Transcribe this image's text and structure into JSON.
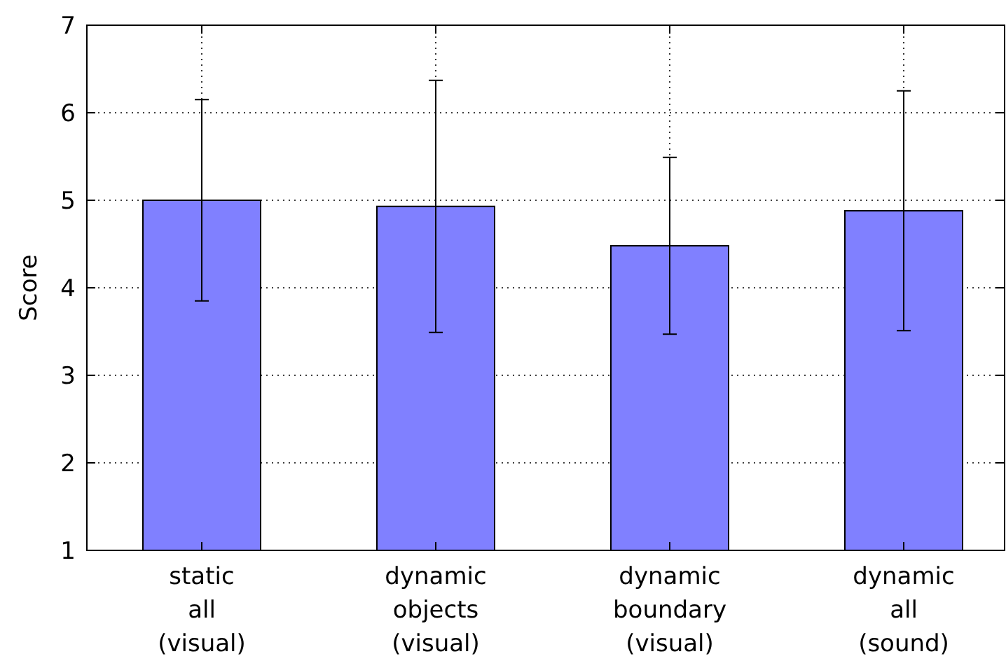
{
  "chart_data": {
    "type": "bar",
    "ylabel": "Score",
    "categories": [
      "static\nall\n(visual)",
      "dynamic\nobjects\n(visual)",
      "dynamic\nboundary\n(visual)",
      "dynamic\nall\n(sound)"
    ],
    "values": [
      5.0,
      4.93,
      4.48,
      4.88
    ],
    "errors": [
      1.15,
      1.44,
      1.01,
      1.37
    ],
    "color": "#8080ff",
    "ylim": [
      1,
      7
    ],
    "yticks": [
      1,
      2,
      3,
      4,
      5,
      6,
      7
    ],
    "grid": true
  }
}
